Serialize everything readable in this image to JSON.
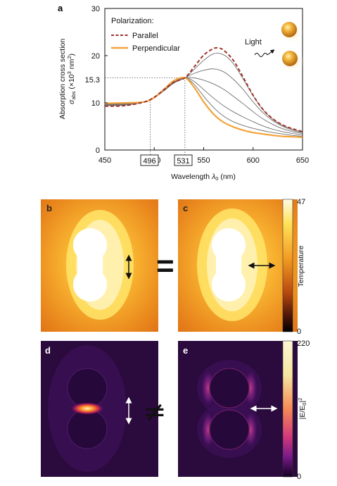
{
  "panel_labels": {
    "a": "a",
    "b": "b",
    "c": "c",
    "d": "d",
    "e": "e"
  },
  "chart_data": {
    "type": "line",
    "xlabel_main": "Wavelength ",
    "xlabel_lambda": "λ",
    "xlabel_sub": "0",
    "xlabel_unit": " (nm)",
    "ylabel_line1": "Absorption cross section",
    "ylabel_sigma": "σ",
    "ylabel_abs": "abs",
    "ylabel_unit_pre": " (×10",
    "ylabel_exp": "3",
    "ylabel_unit_mid": " nm",
    "ylabel_exp2": "2",
    "ylabel_unit_post": ")",
    "xlim": [
      450,
      650
    ],
    "ylim": [
      0,
      30
    ],
    "xticks": [
      "450",
      "500",
      "550",
      "600",
      "650"
    ],
    "yticks": [
      "0",
      "10",
      "20",
      "30"
    ],
    "ref_y_label": "15.3",
    "ref_y": 15.3,
    "ref_x1": 496,
    "ref_x1_label": "496",
    "ref_x2": 531,
    "ref_x2_label": "531",
    "legend_title": "Polarization:",
    "legend_parallel": "Parallel",
    "legend_perpendicular": "Perpendicular",
    "colors": {
      "parallel": "#a0322a",
      "perpendicular": "#f2a33a",
      "intermediate": "#707070",
      "ref": "#555555"
    },
    "series": [
      {
        "name": "Parallel",
        "x": [
          450,
          470,
          490,
          500,
          510,
          520,
          531,
          540,
          550,
          560,
          565,
          570,
          580,
          590,
          600,
          610,
          620,
          630,
          640,
          650
        ],
        "values": [
          9.3,
          9.4,
          10.2,
          11.2,
          12.8,
          14.4,
          15.3,
          17.5,
          20.1,
          21.5,
          21.6,
          21.2,
          19.0,
          15.4,
          11.6,
          8.6,
          6.6,
          5.3,
          4.5,
          3.9
        ]
      },
      {
        "name": "",
        "x": [
          450,
          470,
          490,
          500,
          510,
          520,
          531,
          540,
          550,
          560,
          570,
          580,
          590,
          600,
          610,
          620,
          630,
          640,
          650
        ],
        "values": [
          9.4,
          9.5,
          10.2,
          11.2,
          12.7,
          14.3,
          15.3,
          17.0,
          19.0,
          20.4,
          20.2,
          18.3,
          15.0,
          11.5,
          8.5,
          6.5,
          5.2,
          4.4,
          3.8
        ]
      },
      {
        "name": "",
        "x": [
          450,
          470,
          490,
          500,
          510,
          520,
          531,
          540,
          550,
          560,
          570,
          580,
          590,
          600,
          610,
          620,
          630,
          640,
          650
        ],
        "values": [
          9.5,
          9.6,
          10.2,
          11.1,
          12.6,
          14.2,
          15.3,
          16.2,
          16.9,
          17.2,
          16.6,
          15.0,
          12.8,
          10.2,
          7.9,
          6.2,
          5.0,
          4.2,
          3.7
        ]
      },
      {
        "name": "",
        "x": [
          450,
          470,
          490,
          500,
          510,
          520,
          531,
          540,
          550,
          560,
          570,
          580,
          590,
          600,
          610,
          620,
          630,
          640,
          650
        ],
        "values": [
          9.6,
          9.7,
          10.2,
          11.1,
          12.6,
          14.2,
          15.3,
          15.3,
          14.8,
          14.0,
          12.9,
          11.4,
          9.8,
          8.1,
          6.6,
          5.4,
          4.5,
          3.9,
          3.5
        ]
      },
      {
        "name": "",
        "x": [
          450,
          470,
          490,
          500,
          510,
          520,
          531,
          540,
          550,
          560,
          570,
          580,
          590,
          600,
          610,
          620,
          630,
          640,
          650
        ],
        "values": [
          9.7,
          9.8,
          10.2,
          11.1,
          12.6,
          14.3,
          15.3,
          14.6,
          12.8,
          11.0,
          9.4,
          8.1,
          7.0,
          6.0,
          5.1,
          4.4,
          3.9,
          3.5,
          3.2
        ]
      },
      {
        "name": "",
        "x": [
          450,
          470,
          490,
          500,
          510,
          520,
          531,
          540,
          550,
          560,
          570,
          580,
          590,
          600,
          610,
          620,
          630,
          640,
          650
        ],
        "values": [
          9.8,
          9.9,
          10.2,
          11.1,
          12.7,
          14.4,
          15.3,
          14.0,
          11.4,
          9.0,
          7.2,
          6.0,
          5.2,
          4.6,
          4.1,
          3.7,
          3.4,
          3.1,
          2.9
        ]
      },
      {
        "name": "Perpendicular",
        "x": [
          450,
          470,
          490,
          500,
          510,
          520,
          531,
          540,
          550,
          560,
          570,
          580,
          590,
          600,
          610,
          620,
          630,
          640,
          650
        ],
        "values": [
          9.9,
          10.0,
          10.2,
          11.1,
          12.9,
          14.7,
          15.3,
          13.4,
          10.2,
          7.6,
          5.9,
          4.9,
          4.2,
          3.7,
          3.4,
          3.1,
          2.9,
          2.8,
          2.7
        ]
      }
    ],
    "light_label": "Light"
  },
  "maps": {
    "temperature_label": "Temperature",
    "temperature_max": "47",
    "temperature_min": "0",
    "field_label_main": "|E/E",
    "field_label_sub": "0",
    "field_label_end": "|",
    "field_label_exp": "2",
    "field_max": "220",
    "field_min": "0",
    "equals_symbol": "=",
    "not_equal_symbol": "≠"
  }
}
